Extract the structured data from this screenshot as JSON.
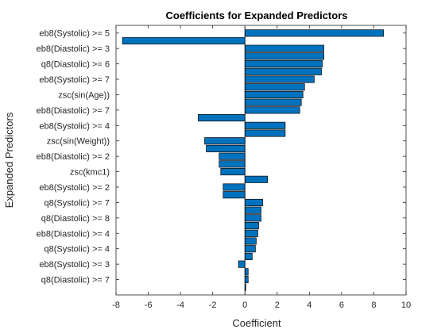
{
  "chart_data": {
    "type": "bar",
    "orientation": "horizontal",
    "title": "Coefficients for Expanded Predictors",
    "xlabel": "Coefficient",
    "ylabel": "Expanded Predictors",
    "xlim": [
      -8,
      10
    ],
    "xticks": [
      "-8",
      "-6",
      "-4",
      "-2",
      "0",
      "2",
      "4",
      "6",
      "8",
      "10"
    ],
    "xtick_values": [
      -8,
      -6,
      -4,
      -2,
      0,
      2,
      4,
      6,
      8,
      10
    ],
    "bar_color": "#0072BD",
    "grid": false,
    "ytick_labels": [
      "eb8(Systolic) >= 5",
      "eb8(Diastolic) >= 3",
      "q8(Diastolic) >= 6",
      "eb8(Systolic) >= 7",
      "zsc(sin(Age))",
      "eb8(Diastolic) >= 7",
      "eb8(Systolic) >= 4",
      "zsc(sin(Weight))",
      "eb8(Diastolic) >= 2",
      "zsc(kmc1)",
      "eb8(Systolic) >= 2",
      "q8(Systolic) >= 7",
      "q8(Diastolic) >= 8",
      "eb8(Diastolic) >= 4",
      "q8(Systolic) >= 4",
      "eb8(Systolic) >= 3",
      "q8(Diastolic) >= 7"
    ],
    "values": [
      8.6,
      -7.6,
      4.9,
      4.9,
      4.8,
      4.75,
      4.3,
      3.7,
      3.6,
      3.5,
      3.4,
      -2.9,
      2.5,
      2.5,
      -2.5,
      -2.4,
      -1.6,
      -1.6,
      -1.5,
      1.4,
      -1.35,
      -1.35,
      1.1,
      1.0,
      1.0,
      0.85,
      0.8,
      0.7,
      0.65,
      0.45,
      -0.4,
      0.2,
      0.2,
      0.05
    ]
  }
}
